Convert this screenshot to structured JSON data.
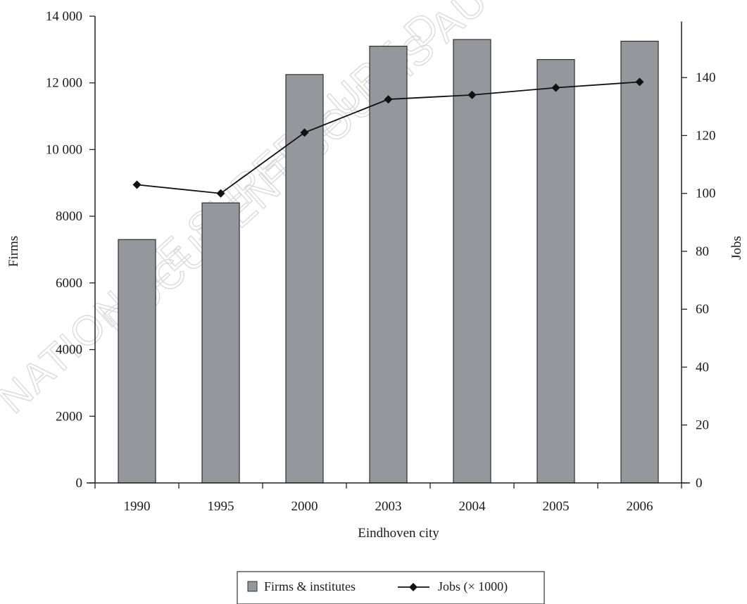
{
  "watermark": {
    "line1": "NATIONALE SUPERIEURE D",
    "line2": "DOCUMENT SOUMIS AU D"
  },
  "chart_data": {
    "type": "bar",
    "title": "",
    "xlabel": "Eindhoven city",
    "ylabel": "Firms",
    "y2label": "Jobs",
    "categories": [
      "1990",
      "1995",
      "2000",
      "2003",
      "2004",
      "2005",
      "2006"
    ],
    "ylim": [
      0,
      14000
    ],
    "yticks": [
      0,
      2000,
      4000,
      6000,
      8000,
      10000,
      12000,
      14000
    ],
    "ytick_labels": [
      "0",
      "2000",
      "4000",
      "6000",
      "8000",
      "10 000",
      "12 000",
      "14 000"
    ],
    "y2lim": [
      0,
      160
    ],
    "y2ticks": [
      0,
      20,
      40,
      60,
      80,
      100,
      120,
      140
    ],
    "y2tick_labels": [
      "0",
      "20",
      "40",
      "60",
      "80",
      "100",
      "120",
      "140"
    ],
    "series": [
      {
        "name": "Firms & institutes",
        "type": "bar",
        "axis": "left",
        "color": "#96979c",
        "values": [
          7300,
          8400,
          12250,
          13100,
          13300,
          12700,
          13250
        ]
      },
      {
        "name": "Jobs (× 1000)",
        "type": "line",
        "axis": "right",
        "color": "#111111",
        "marker": "diamond",
        "values": [
          103,
          100,
          121,
          132.5,
          134,
          136.5,
          138.5
        ]
      }
    ],
    "legend": {
      "placement": "bottom"
    },
    "grid": false
  }
}
